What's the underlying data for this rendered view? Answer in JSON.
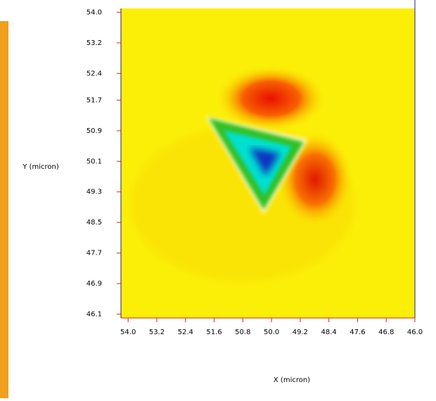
{
  "chart_data": {
    "type": "heatmap",
    "xlabel": "X (micron)",
    "ylabel": "Y (micron)",
    "xlim": [
      54.2,
      46.0
    ],
    "ylim": [
      46.0,
      54.1
    ],
    "xticks": [
      {
        "value": 54.0,
        "label": "54.0"
      },
      {
        "value": 53.2,
        "label": "53.2"
      },
      {
        "value": 52.4,
        "label": "52.4"
      },
      {
        "value": 51.6,
        "label": "51.6"
      },
      {
        "value": 50.8,
        "label": "50.8"
      },
      {
        "value": 50.0,
        "label": "50.0"
      },
      {
        "value": 49.2,
        "label": "49.2"
      },
      {
        "value": 48.4,
        "label": "48.4"
      },
      {
        "value": 47.6,
        "label": "47.6"
      },
      {
        "value": 46.8,
        "label": "46.8"
      },
      {
        "value": 46.0,
        "label": "46.0"
      }
    ],
    "yticks": [
      {
        "value": 54.0,
        "label": "54.0"
      },
      {
        "value": 53.2,
        "label": "53.2"
      },
      {
        "value": 52.4,
        "label": "52.4"
      },
      {
        "value": 51.7,
        "label": "51.7"
      },
      {
        "value": 50.9,
        "label": "50.9"
      },
      {
        "value": 50.1,
        "label": "50.1"
      },
      {
        "value": 49.3,
        "label": "49.3"
      },
      {
        "value": 48.5,
        "label": "48.5"
      },
      {
        "value": 47.7,
        "label": "47.7"
      },
      {
        "value": 46.9,
        "label": "46.9"
      },
      {
        "value": 46.1,
        "label": "46.1"
      }
    ],
    "tick_color": "#e02020"
  }
}
